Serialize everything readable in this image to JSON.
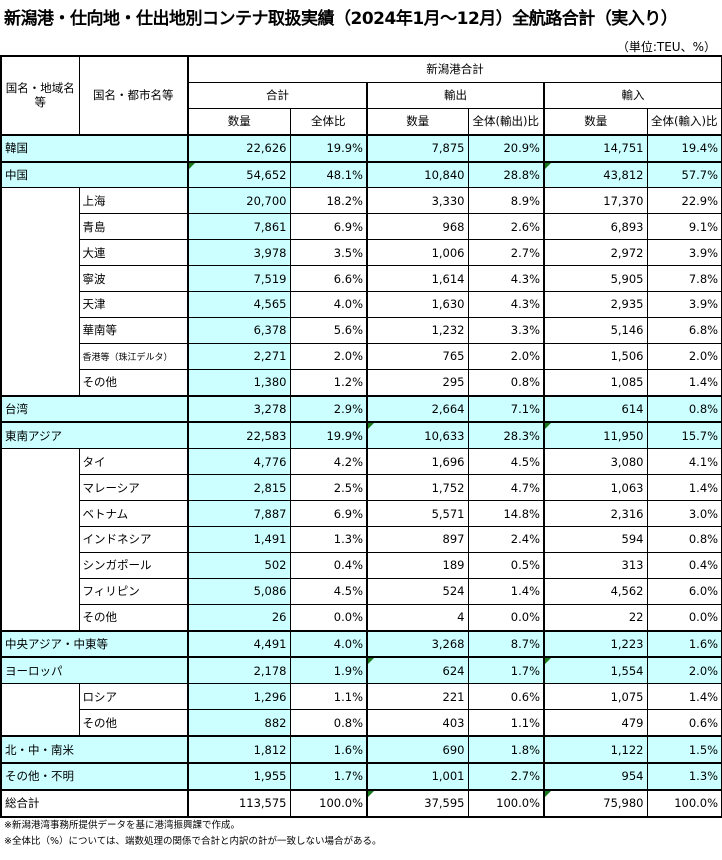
{
  "title": "新潟港・仕向地・仕出地別コンテナ取扱実績（2024年1月～12月）全航路合計（実入り）",
  "unit": "（単位:TEU、%）",
  "headers": {
    "region": "国名・地域名等",
    "city": "国名・都市名等",
    "port_total": "新潟港合計",
    "total": "合計",
    "export": "輸出",
    "import": "輸入",
    "qty": "数量",
    "ratio": "全体比",
    "export_ratio": "全体(輸出)比",
    "import_ratio": "全体(輸入)比"
  },
  "colors": {
    "highlight": "#ccffff",
    "indicator": "#1a7a1a"
  },
  "rows": [
    {
      "type": "main",
      "name": "韓国",
      "v": [
        "22,626",
        "19.9%",
        "7,875",
        "20.9%",
        "14,751",
        "19.4%"
      ]
    },
    {
      "type": "main",
      "name": "中国",
      "v": [
        "54,652",
        "48.1%",
        "10,840",
        "28.8%",
        "43,812",
        "57.7%"
      ],
      "tri": [
        0,
        4
      ]
    },
    {
      "type": "sub",
      "name": "上海",
      "v": [
        "20,700",
        "18.2%",
        "3,330",
        "8.9%",
        "17,370",
        "22.9%"
      ]
    },
    {
      "type": "sub",
      "name": "青島",
      "v": [
        "7,861",
        "6.9%",
        "968",
        "2.6%",
        "6,893",
        "9.1%"
      ]
    },
    {
      "type": "sub",
      "name": "大連",
      "v": [
        "3,978",
        "3.5%",
        "1,006",
        "2.7%",
        "2,972",
        "3.9%"
      ]
    },
    {
      "type": "sub",
      "name": "寧波",
      "v": [
        "7,519",
        "6.6%",
        "1,614",
        "4.3%",
        "5,905",
        "7.8%"
      ]
    },
    {
      "type": "sub",
      "name": "天津",
      "v": [
        "4,565",
        "4.0%",
        "1,630",
        "4.3%",
        "2,935",
        "3.9%"
      ]
    },
    {
      "type": "sub",
      "name": "華南等",
      "v": [
        "6,378",
        "5.6%",
        "1,232",
        "3.3%",
        "5,146",
        "6.8%"
      ]
    },
    {
      "type": "sub",
      "name": "香港等（珠江デルタ）",
      "small": true,
      "v": [
        "2,271",
        "2.0%",
        "765",
        "2.0%",
        "1,506",
        "2.0%"
      ]
    },
    {
      "type": "sub",
      "name": "その他",
      "v": [
        "1,380",
        "1.2%",
        "295",
        "0.8%",
        "1,085",
        "1.4%"
      ]
    },
    {
      "type": "main",
      "name": "台湾",
      "v": [
        "3,278",
        "2.9%",
        "2,664",
        "7.1%",
        "614",
        "0.8%"
      ]
    },
    {
      "type": "main",
      "name": "東南アジア",
      "v": [
        "22,583",
        "19.9%",
        "10,633",
        "28.3%",
        "11,950",
        "15.7%"
      ],
      "tri": [
        2,
        4
      ]
    },
    {
      "type": "sub",
      "name": "タイ",
      "v": [
        "4,776",
        "4.2%",
        "1,696",
        "4.5%",
        "3,080",
        "4.1%"
      ]
    },
    {
      "type": "sub",
      "name": "マレーシア",
      "v": [
        "2,815",
        "2.5%",
        "1,752",
        "4.7%",
        "1,063",
        "1.4%"
      ]
    },
    {
      "type": "sub",
      "name": "ベトナム",
      "v": [
        "7,887",
        "6.9%",
        "5,571",
        "14.8%",
        "2,316",
        "3.0%"
      ]
    },
    {
      "type": "sub",
      "name": "インドネシア",
      "v": [
        "1,491",
        "1.3%",
        "897",
        "2.4%",
        "594",
        "0.8%"
      ]
    },
    {
      "type": "sub",
      "name": "シンガポール",
      "v": [
        "502",
        "0.4%",
        "189",
        "0.5%",
        "313",
        "0.4%"
      ]
    },
    {
      "type": "sub",
      "name": "フィリピン",
      "v": [
        "5,086",
        "4.5%",
        "524",
        "1.4%",
        "4,562",
        "6.0%"
      ]
    },
    {
      "type": "sub",
      "name": "その他",
      "v": [
        "26",
        "0.0%",
        "4",
        "0.0%",
        "22",
        "0.0%"
      ]
    },
    {
      "type": "main",
      "name": "中央アジア・中東等",
      "v": [
        "4,491",
        "4.0%",
        "3,268",
        "8.7%",
        "1,223",
        "1.6%"
      ]
    },
    {
      "type": "main",
      "name": "ヨーロッパ",
      "v": [
        "2,178",
        "1.9%",
        "624",
        "1.7%",
        "1,554",
        "2.0%"
      ],
      "tri": [
        2,
        4
      ]
    },
    {
      "type": "sub",
      "name": "ロシア",
      "v": [
        "1,296",
        "1.1%",
        "221",
        "0.6%",
        "1,075",
        "1.4%"
      ]
    },
    {
      "type": "sub",
      "name": "その他",
      "v": [
        "882",
        "0.8%",
        "403",
        "1.1%",
        "479",
        "0.6%"
      ]
    },
    {
      "type": "main",
      "name": "北・中・南米",
      "v": [
        "1,812",
        "1.6%",
        "690",
        "1.8%",
        "1,122",
        "1.5%"
      ]
    },
    {
      "type": "main",
      "name": "その他・不明",
      "v": [
        "1,955",
        "1.7%",
        "1,001",
        "2.7%",
        "954",
        "1.3%"
      ]
    },
    {
      "type": "total",
      "name": "総合計",
      "v": [
        "113,575",
        "100.0%",
        "37,595",
        "100.0%",
        "75,980",
        "100.0%"
      ],
      "tri": [
        2,
        4
      ]
    }
  ],
  "notes": [
    "※新潟港湾事務所提供データを基に港湾振興課で作成。",
    "※全体比（%）については、端数処理の関係で合計と内訳の計が一致しない場合がある。"
  ]
}
